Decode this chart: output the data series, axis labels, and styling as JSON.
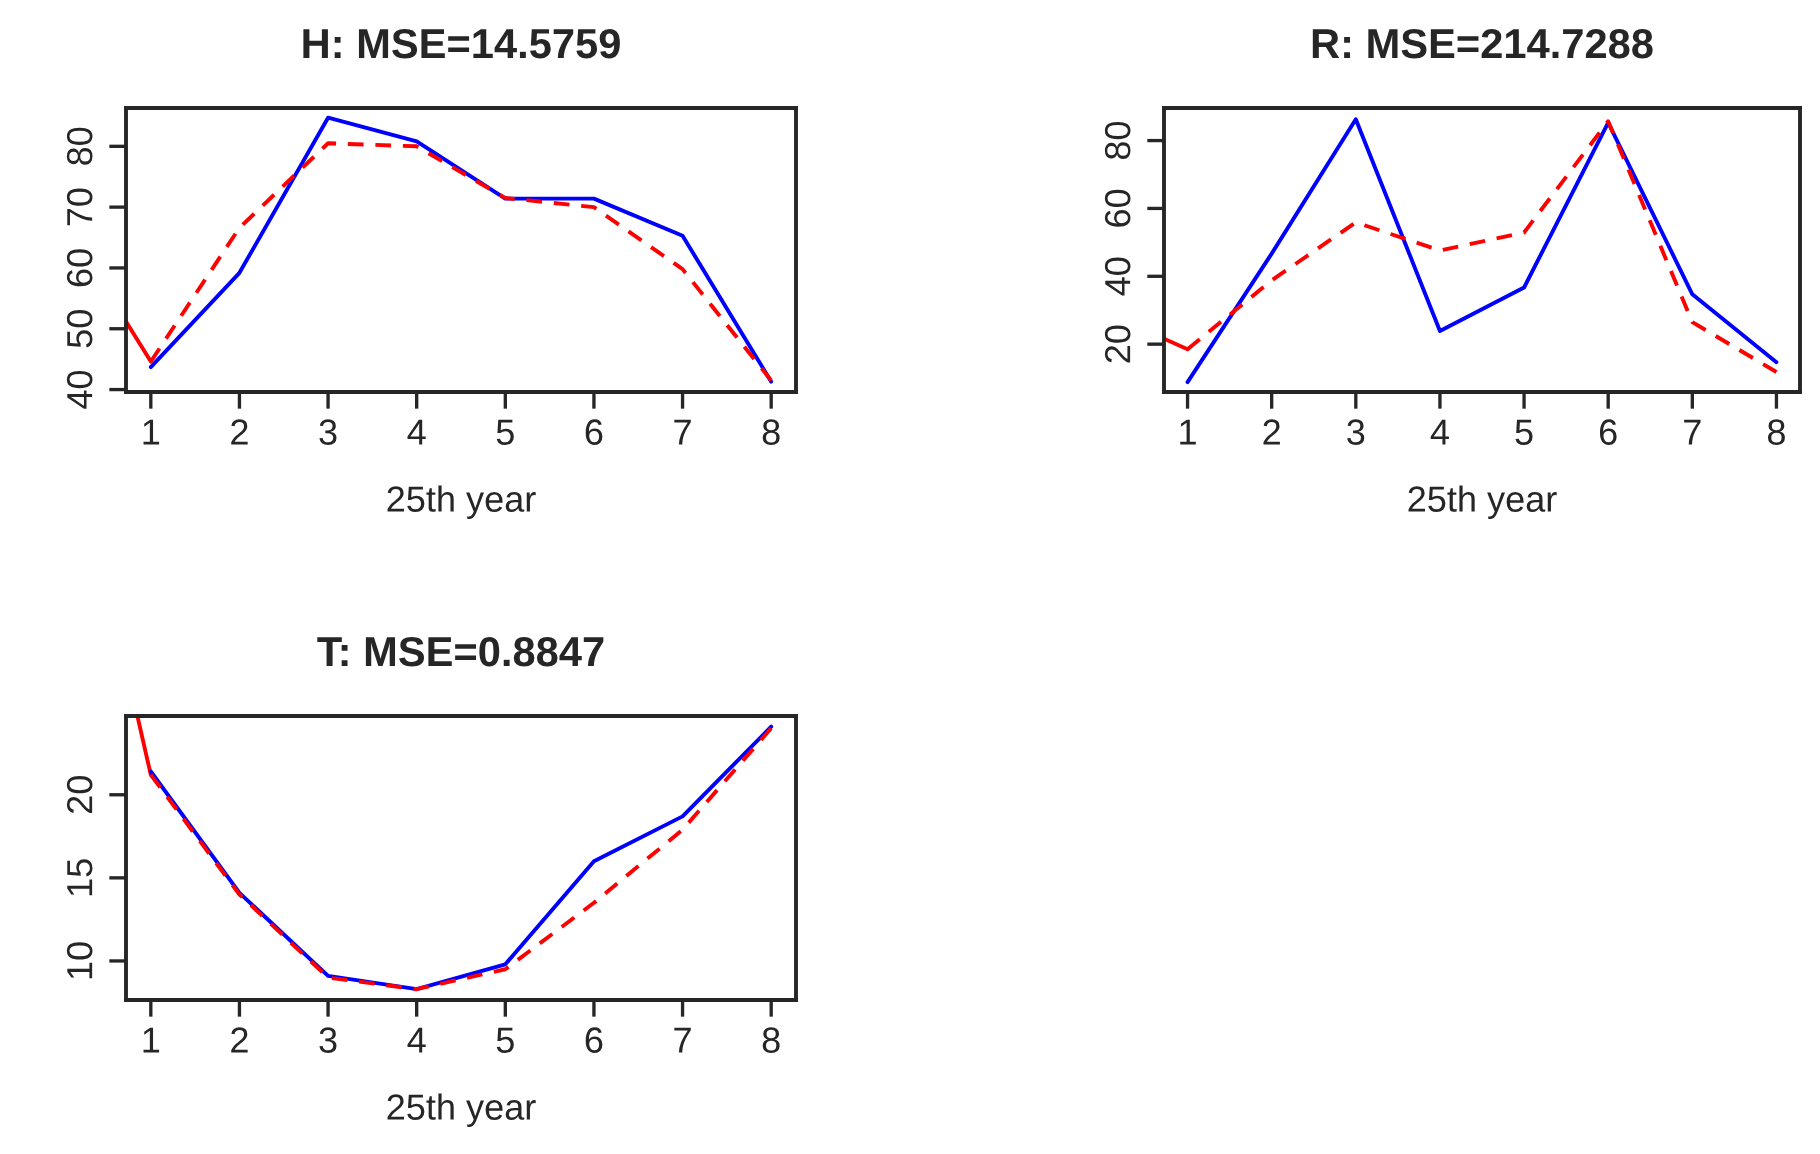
{
  "chart_data": [
    {
      "type": "line",
      "title": "H: MSE=14.5759",
      "xlabel": "25th year",
      "xlim": [
        0.72,
        8.28
      ],
      "xticks": [
        1,
        2,
        3,
        4,
        5,
        6,
        7,
        8
      ],
      "ylim": [
        39.6,
        86.3
      ],
      "yticks": [
        40,
        50,
        60,
        70,
        80
      ],
      "grid": false,
      "series": [
        {
          "color": "#ff0000",
          "line_style": "solid",
          "x": [
            0.72,
            1
          ],
          "values": [
            51.2,
            44.6
          ]
        },
        {
          "color": "#0000ff",
          "line_style": "solid",
          "x": [
            1,
            2,
            3,
            4,
            5,
            6,
            7,
            8
          ],
          "values": [
            43.7,
            59.2,
            84.7,
            80.8,
            71.4,
            71.4,
            65.3,
            41.3
          ]
        },
        {
          "color": "#ff0000",
          "line_style": "dashed",
          "x": [
            1,
            2,
            3,
            4,
            5,
            6,
            7,
            8
          ],
          "values": [
            44.6,
            66.6,
            80.5,
            80.0,
            71.5,
            70.0,
            59.8,
            41.5
          ]
        }
      ]
    },
    {
      "type": "line",
      "title": "R: MSE=214.7288",
      "xlabel": "25th year",
      "xlim": [
        0.72,
        8.28
      ],
      "xticks": [
        1,
        2,
        3,
        4,
        5,
        6,
        7,
        8
      ],
      "ylim": [
        5.9,
        89.6
      ],
      "yticks": [
        20,
        40,
        60,
        80
      ],
      "grid": false,
      "series": [
        {
          "color": "#ff0000",
          "line_style": "solid",
          "x": [
            0.72,
            1
          ],
          "values": [
            21.6,
            18.5
          ]
        },
        {
          "color": "#0000ff",
          "line_style": "solid",
          "x": [
            1,
            2,
            3,
            4,
            5,
            6,
            7,
            8
          ],
          "values": [
            8.8,
            46.7,
            86.3,
            23.9,
            36.7,
            85.3,
            34.7,
            14.7
          ]
        },
        {
          "color": "#ff0000",
          "line_style": "dashed",
          "x": [
            1,
            2,
            3,
            4,
            5,
            6,
            7,
            8
          ],
          "values": [
            18.5,
            38.8,
            55.9,
            47.6,
            52.9,
            85.7,
            26.5,
            11.8
          ]
        }
      ]
    },
    {
      "type": "line",
      "title": "T: MSE=0.8847",
      "xlabel": "25th year",
      "xlim": [
        0.72,
        8.28
      ],
      "xticks": [
        1,
        2,
        3,
        4,
        5,
        6,
        7,
        8
      ],
      "ylim": [
        7.65,
        24.74
      ],
      "yticks": [
        10,
        15,
        20
      ],
      "grid": false,
      "series": [
        {
          "color": "#ff0000",
          "line_style": "solid",
          "x": [
            0.85,
            1
          ],
          "values": [
            24.7,
            21.2
          ]
        },
        {
          "color": "#0000ff",
          "line_style": "solid",
          "x": [
            1,
            2,
            3,
            4,
            5,
            6,
            7,
            8
          ],
          "values": [
            21.4,
            14.1,
            9.1,
            8.3,
            9.8,
            16.0,
            18.7,
            24.1
          ]
        },
        {
          "color": "#ff0000",
          "line_style": "dashed",
          "x": [
            1,
            2,
            3,
            4,
            5,
            6,
            7,
            8
          ],
          "values": [
            21.2,
            14.0,
            9.0,
            8.3,
            9.5,
            13.5,
            17.9,
            24.0
          ]
        }
      ]
    }
  ]
}
